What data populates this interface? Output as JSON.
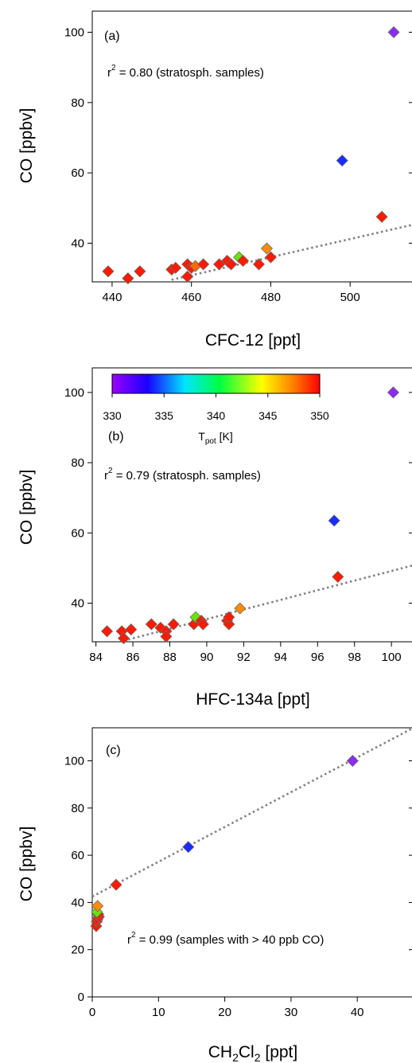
{
  "chart_data": [
    {
      "type": "scatter",
      "panel": "(a)",
      "xlabel": "CFC-12 [ppt]",
      "ylabel": "CO [ppbv]",
      "xlim": [
        435,
        516
      ],
      "ylim": [
        29,
        106
      ],
      "xticks": [
        440,
        460,
        480,
        500
      ],
      "yticks": [
        40,
        60,
        80,
        100
      ],
      "annotation": {
        "prefix": "r",
        "sup": "2",
        "text": " = 0.80 (stratosph. samples)"
      },
      "fit_line": {
        "x": [
          455,
          516
        ],
        "y": [
          29.6,
          45.3
        ]
      },
      "points": [
        {
          "x": 439,
          "y": 32,
          "c": "#ff1a00"
        },
        {
          "x": 444,
          "y": 30,
          "c": "#ff1a00"
        },
        {
          "x": 447,
          "y": 32,
          "c": "#ff1a00"
        },
        {
          "x": 455,
          "y": 32.5,
          "c": "#ff1a00"
        },
        {
          "x": 456,
          "y": 33,
          "c": "#ff1a00"
        },
        {
          "x": 459,
          "y": 34,
          "c": "#ff1a00"
        },
        {
          "x": 459,
          "y": 30.5,
          "c": "#ff1a00"
        },
        {
          "x": 460,
          "y": 33,
          "c": "#ff1a00"
        },
        {
          "x": 461,
          "y": 33.5,
          "c": "#ff6a00"
        },
        {
          "x": 463,
          "y": 34,
          "c": "#ff1a00"
        },
        {
          "x": 467,
          "y": 34,
          "c": "#ff1a00"
        },
        {
          "x": 469,
          "y": 35,
          "c": "#ff1a00"
        },
        {
          "x": 470,
          "y": 34,
          "c": "#ff1a00"
        },
        {
          "x": 472,
          "y": 36,
          "c": "#66e600"
        },
        {
          "x": 473,
          "y": 35,
          "c": "#ff1a00"
        },
        {
          "x": 477,
          "y": 34,
          "c": "#ff1a00"
        },
        {
          "x": 479,
          "y": 38.5,
          "c": "#ff8c00"
        },
        {
          "x": 480,
          "y": 36,
          "c": "#ff1a00"
        },
        {
          "x": 498,
          "y": 63.5,
          "c": "#1a2cff"
        },
        {
          "x": 508,
          "y": 47.5,
          "c": "#ff1a00"
        },
        {
          "x": 511,
          "y": 100,
          "c": "#8c2cf0"
        }
      ]
    },
    {
      "type": "scatter",
      "panel": "(b)",
      "xlabel": "HFC-134a [ppt]",
      "ylabel": "CO [ppbv]",
      "xlim": [
        83.8,
        101.2
      ],
      "ylim": [
        29,
        107
      ],
      "xticks": [
        84,
        86,
        88,
        90,
        92,
        94,
        96,
        98,
        100
      ],
      "yticks": [
        40,
        60,
        80,
        100
      ],
      "annotation": {
        "prefix": "r",
        "sup": "2",
        "text": " = 0.79 (stratosph. samples)"
      },
      "fit_line": {
        "x": [
          85.5,
          101.2
        ],
        "y": [
          29.3,
          50.8
        ]
      },
      "colorbar": {
        "min": 330,
        "max": 350,
        "ticks": [
          330,
          335,
          340,
          345,
          350
        ],
        "label_main": "T",
        "label_sub": "pot",
        "label_unit": " [K]"
      },
      "points": [
        {
          "x": 84.6,
          "y": 32,
          "c": "#ff1a00"
        },
        {
          "x": 85.4,
          "y": 32,
          "c": "#ff1a00"
        },
        {
          "x": 85.5,
          "y": 30,
          "c": "#ff1a00"
        },
        {
          "x": 85.9,
          "y": 32.5,
          "c": "#ff1a00"
        },
        {
          "x": 87.0,
          "y": 34,
          "c": "#ff1a00"
        },
        {
          "x": 87.5,
          "y": 33,
          "c": "#ff1a00"
        },
        {
          "x": 87.8,
          "y": 32,
          "c": "#ff1a00"
        },
        {
          "x": 87.8,
          "y": 30.5,
          "c": "#ff1a00"
        },
        {
          "x": 88.2,
          "y": 34,
          "c": "#ff1a00"
        },
        {
          "x": 89.3,
          "y": 34,
          "c": "#ff1a00"
        },
        {
          "x": 89.4,
          "y": 36,
          "c": "#66e600"
        },
        {
          "x": 89.7,
          "y": 35,
          "c": "#ff1a00"
        },
        {
          "x": 89.8,
          "y": 34,
          "c": "#ff1a00"
        },
        {
          "x": 91.1,
          "y": 35,
          "c": "#ff1a00"
        },
        {
          "x": 91.2,
          "y": 34,
          "c": "#ff1a00"
        },
        {
          "x": 91.2,
          "y": 36,
          "c": "#ff1a00"
        },
        {
          "x": 91.8,
          "y": 38.5,
          "c": "#ff8c00"
        },
        {
          "x": 96.9,
          "y": 63.5,
          "c": "#1a2cff"
        },
        {
          "x": 97.1,
          "y": 47.5,
          "c": "#ff1a00"
        },
        {
          "x": 100.1,
          "y": 100,
          "c": "#8c2cf0"
        }
      ]
    },
    {
      "type": "scatter",
      "panel": "(c)",
      "xlabel_main": "CH",
      "xlabel_sub1": "2",
      "xlabel_mid": "Cl",
      "xlabel_sub2": "2",
      "xlabel_unit": " [ppt]",
      "ylabel": "CO [ppbv]",
      "xlim": [
        0,
        48.5
      ],
      "ylim": [
        0,
        114
      ],
      "xticks": [
        0,
        10,
        20,
        30,
        40
      ],
      "yticks": [
        0,
        20,
        40,
        60,
        80,
        100
      ],
      "annotation": {
        "prefix": "r",
        "sup": "2",
        "text": " = 0.99 (samples with > 40 ppb CO)"
      },
      "fit_line": {
        "x": [
          0,
          48.5
        ],
        "y": [
          42.5,
          114
        ]
      },
      "points": [
        {
          "x": 0.6,
          "y": 30,
          "c": "#ff1a00"
        },
        {
          "x": 0.7,
          "y": 32,
          "c": "#ff1a00"
        },
        {
          "x": 0.8,
          "y": 33,
          "c": "#ff1a00"
        },
        {
          "x": 1.0,
          "y": 34,
          "c": "#ff1a00"
        },
        {
          "x": 0.9,
          "y": 35,
          "c": "#ff1a00"
        },
        {
          "x": 0.7,
          "y": 36,
          "c": "#66e600"
        },
        {
          "x": 0.8,
          "y": 38.5,
          "c": "#ff8c00"
        },
        {
          "x": 3.6,
          "y": 47.5,
          "c": "#ff1a00"
        },
        {
          "x": 14.5,
          "y": 63.5,
          "c": "#1a2cff"
        },
        {
          "x": 39.3,
          "y": 100,
          "c": "#8c2cf0"
        }
      ]
    }
  ]
}
